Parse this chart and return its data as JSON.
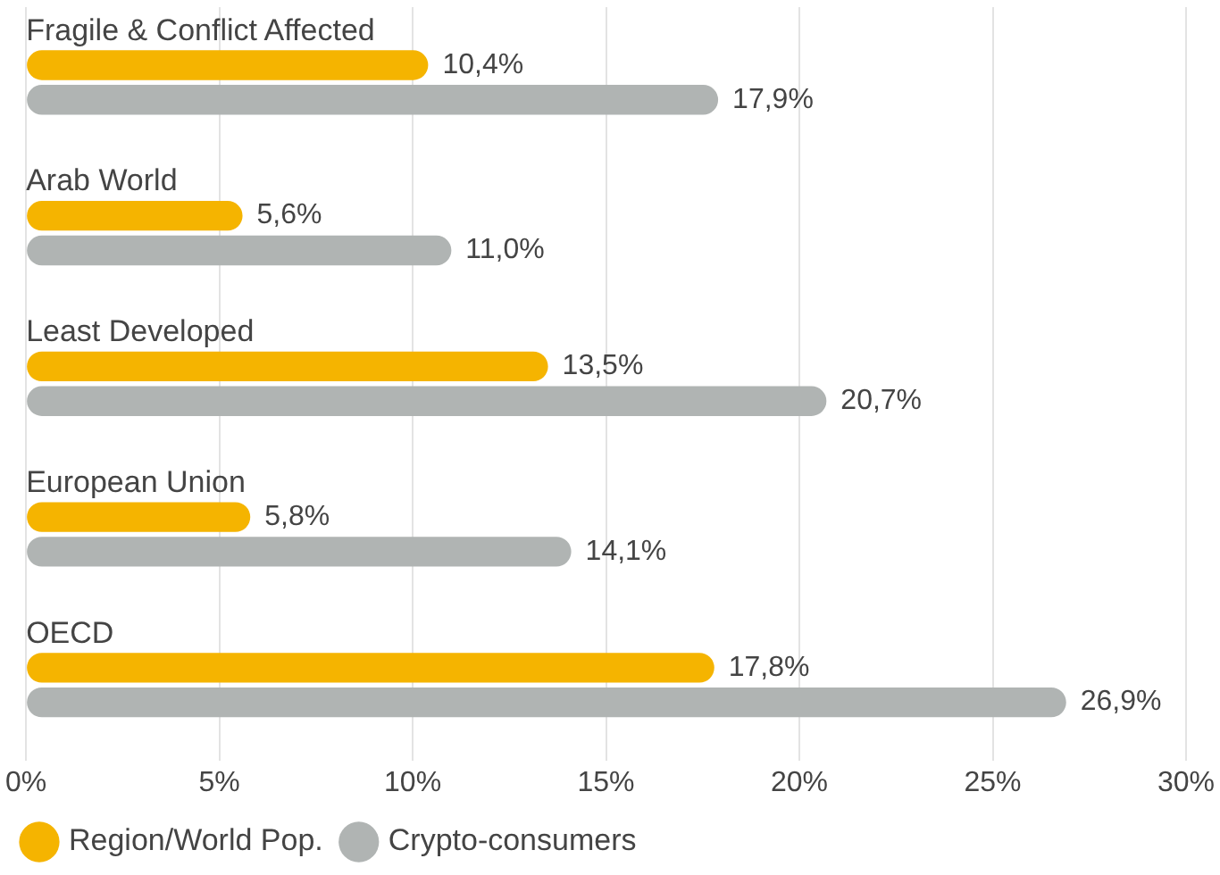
{
  "chart_data": {
    "type": "bar",
    "orientation": "horizontal",
    "categories": [
      "Fragile & Conflict Affected",
      "Arab World",
      "Least Developed",
      "European Union",
      "OECD"
    ],
    "series": [
      {
        "name": "Region/World Pop.",
        "color": "#f5b400",
        "values": [
          10.4,
          5.6,
          13.5,
          5.8,
          17.8
        ],
        "value_labels": [
          "10,4%",
          "5,6%",
          "13,5%",
          "5,8%",
          "17,8%"
        ]
      },
      {
        "name": "Crypto-consumers",
        "color": "#b0b4b3",
        "values": [
          17.9,
          11.0,
          20.7,
          14.1,
          26.9
        ],
        "value_labels": [
          "17,9%",
          "11,0%",
          "20,7%",
          "14,1%",
          "26,9%"
        ]
      }
    ],
    "xlim": [
      0,
      30
    ],
    "xticks": [
      {
        "value": 0,
        "label": "0%"
      },
      {
        "value": 5,
        "label": "5%"
      },
      {
        "value": 10,
        "label": "10%"
      },
      {
        "value": 15,
        "label": "15%"
      },
      {
        "value": 20,
        "label": "20%"
      },
      {
        "value": 25,
        "label": "25%"
      },
      {
        "value": 30,
        "label": "30%"
      }
    ],
    "grid": "x",
    "legend": "bottom left",
    "tick_labels": "x"
  }
}
